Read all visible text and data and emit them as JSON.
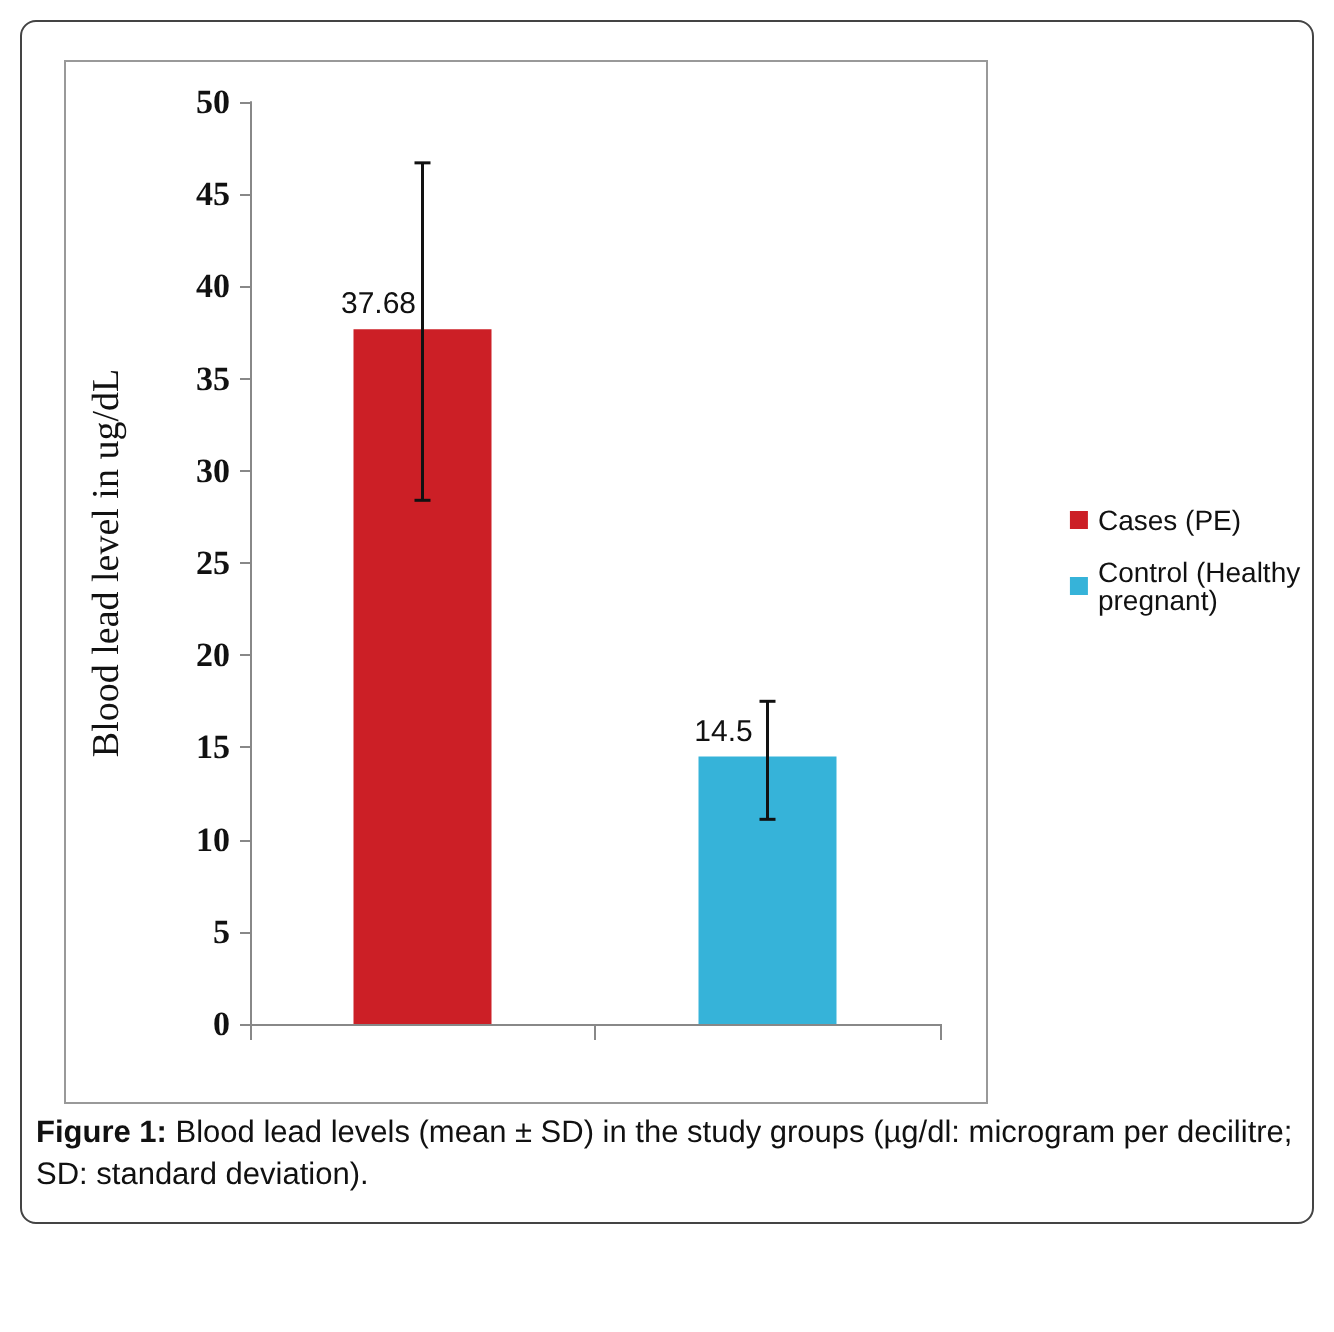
{
  "chart_data": {
    "type": "bar",
    "ylabel": "Blood lead level in ug/dL",
    "categories": [
      null,
      null
    ],
    "series": [
      {
        "name": "Cases (PE)",
        "color": "#cc1f26",
        "values": [
          37.68,
          null
        ],
        "errors": [
          [
            28.4,
            46.7
          ],
          null
        ]
      },
      {
        "name": "Control (Healthy pregnant)",
        "color": "#36b3d9",
        "values": [
          null,
          14.5
        ],
        "errors": [
          null,
          [
            11.1,
            17.5
          ]
        ]
      }
    ],
    "ylim": [
      0,
      50
    ],
    "yticks": [
      0,
      5,
      10,
      15,
      20,
      25,
      30,
      35,
      40,
      45,
      50
    ],
    "data_labels": true,
    "grid": false,
    "legend": "right",
    "annotations": [
      "Figure 1: Blood lead levels (mean ± SD) in the study groups (µg/dl: microgram per decilitre; SD: standard deviation)."
    ]
  }
}
